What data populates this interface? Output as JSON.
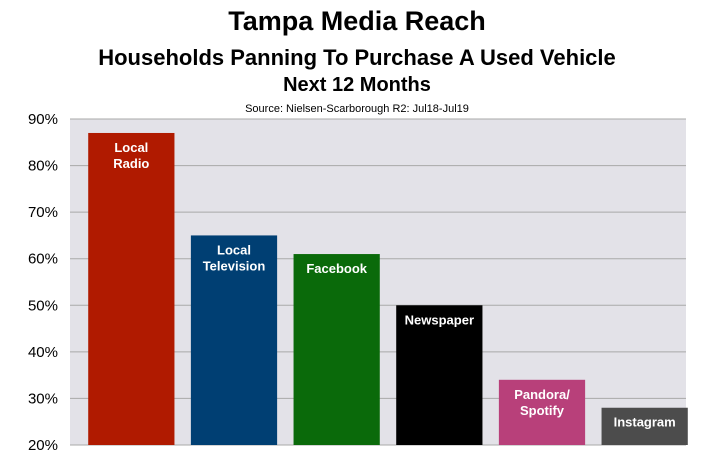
{
  "header": {
    "title": "Tampa Media Reach",
    "subtitle": "Households Panning To Purchase A Used Vehicle",
    "period": "Next 12 Months",
    "source": "Source: Nielsen-Scarborough R2: Jul18-Jul19"
  },
  "chart_data": {
    "type": "bar",
    "title": "Tampa Media Reach",
    "subtitle": "Households Panning To Purchase A Used Vehicle",
    "xlabel": "",
    "ylabel": "",
    "ylim": [
      20,
      90
    ],
    "yticks": [
      "20%",
      "30%",
      "40%",
      "50%",
      "60%",
      "70%",
      "80%",
      "90%"
    ],
    "grid": true,
    "plot_background": "#e3e2e8",
    "categories": [
      [
        "Local",
        "Radio"
      ],
      [
        "Local",
        "Television"
      ],
      [
        "Facebook"
      ],
      [
        "Newspaper"
      ],
      [
        "Pandora/",
        "Spotify"
      ],
      [
        "Instagram"
      ]
    ],
    "values": [
      87,
      65,
      61,
      50,
      34,
      28
    ],
    "colors": [
      "#b01a00",
      "#003f73",
      "#0a6a0a",
      "#000000",
      "#b8407a",
      "#4c4c4c"
    ]
  }
}
